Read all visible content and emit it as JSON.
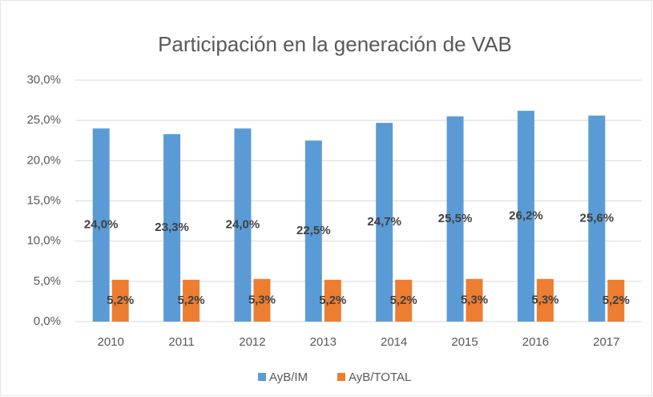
{
  "chart_data": {
    "type": "bar",
    "title": "Participación en la generación de VAB",
    "categories": [
      "2010",
      "2011",
      "2012",
      "2013",
      "2014",
      "2015",
      "2016",
      "2017"
    ],
    "series": [
      {
        "name": "AyB/IM",
        "color": "#5b9bd5",
        "values": [
          24.0,
          23.3,
          24.0,
          22.5,
          24.7,
          25.5,
          26.2,
          25.6
        ],
        "value_labels": [
          "24,0%",
          "23,3%",
          "24,0%",
          "22,5%",
          "24,7%",
          "25,5%",
          "26,2%",
          "25,6%"
        ]
      },
      {
        "name": "AyB/TOTAL",
        "color": "#ed7d31",
        "values": [
          5.2,
          5.2,
          5.3,
          5.2,
          5.2,
          5.3,
          5.3,
          5.2
        ],
        "value_labels": [
          "5,2%",
          "5,2%",
          "5,3%",
          "5,2%",
          "5,2%",
          "5,3%",
          "5,3%",
          "5,2%"
        ]
      }
    ],
    "ylim": [
      0,
      30
    ],
    "yticks": [
      {
        "value": 0,
        "label": "0,0%"
      },
      {
        "value": 5,
        "label": "5,0%"
      },
      {
        "value": 10,
        "label": "10,0%"
      },
      {
        "value": 15,
        "label": "15,0%"
      },
      {
        "value": 20,
        "label": "20,0%"
      },
      {
        "value": 25,
        "label": "25,0%"
      },
      {
        "value": 30,
        "label": "30,0%"
      }
    ],
    "grid": true,
    "legend": "bottom"
  }
}
